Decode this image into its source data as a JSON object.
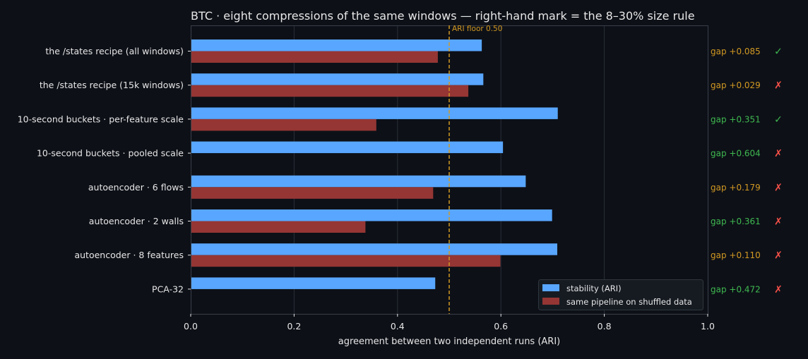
{
  "colors": {
    "background": "#0d1017",
    "plot_border": "#3a3f48",
    "grid": "#2a2f38",
    "text": "#e6e6e6",
    "stability": "#58a6ff",
    "shuffled": "#953634",
    "floor": "#d29922",
    "gap_orange": "#d29922",
    "gap_green": "#3fb950",
    "mark_check": "#3fb950",
    "mark_cross": "#f85149"
  },
  "chart_data": {
    "type": "bar",
    "orientation": "horizontal",
    "title": "BTC · eight compressions of the same windows — right-hand mark = the 8–30% size rule",
    "xlabel": "agreement between two independent runs (ARI)",
    "ylabel": "",
    "xlim": [
      0,
      1.0
    ],
    "xticks": [
      "0.0",
      "0.2",
      "0.4",
      "0.6",
      "0.8",
      "1.0"
    ],
    "xtick_values": [
      0,
      0.2,
      0.4,
      0.6,
      0.8,
      1.0
    ],
    "grid": "vertical",
    "legend_position": "bottom-right",
    "categories": [
      "the /states recipe (all windows)",
      "the /states recipe (15k windows)",
      "10-second buckets · per-feature scale",
      "10-second buckets · pooled scale",
      "autoencoder · 6 flows",
      "autoencoder · 2 walls",
      "autoencoder · 8 features",
      "PCA-32"
    ],
    "series": [
      {
        "name": "stability (ARI)",
        "values": [
          0.563,
          0.566,
          0.71,
          0.604,
          0.648,
          0.699,
          0.709,
          0.473
        ]
      },
      {
        "name": "same pipeline on shuffled data",
        "values": [
          0.478,
          0.537,
          0.359,
          null,
          0.469,
          0.338,
          0.599,
          null
        ]
      }
    ],
    "reference_line": {
      "value": 0.5,
      "label": "ARI floor 0.50"
    },
    "gaps": [
      {
        "label": "gap +0.085",
        "color": "orange",
        "mark": "✓",
        "mark_color": "green"
      },
      {
        "label": "gap +0.029",
        "color": "orange",
        "mark": "✗",
        "mark_color": "red"
      },
      {
        "label": "gap +0.351",
        "color": "green",
        "mark": "✓",
        "mark_color": "green"
      },
      {
        "label": "gap +0.604",
        "color": "green",
        "mark": "✗",
        "mark_color": "red"
      },
      {
        "label": "gap +0.179",
        "color": "orange",
        "mark": "✗",
        "mark_color": "red"
      },
      {
        "label": "gap +0.361",
        "color": "green",
        "mark": "✗",
        "mark_color": "red"
      },
      {
        "label": "gap +0.110",
        "color": "orange",
        "mark": "✗",
        "mark_color": "red"
      },
      {
        "label": "gap +0.472",
        "color": "green",
        "mark": "✗",
        "mark_color": "red"
      }
    ]
  }
}
